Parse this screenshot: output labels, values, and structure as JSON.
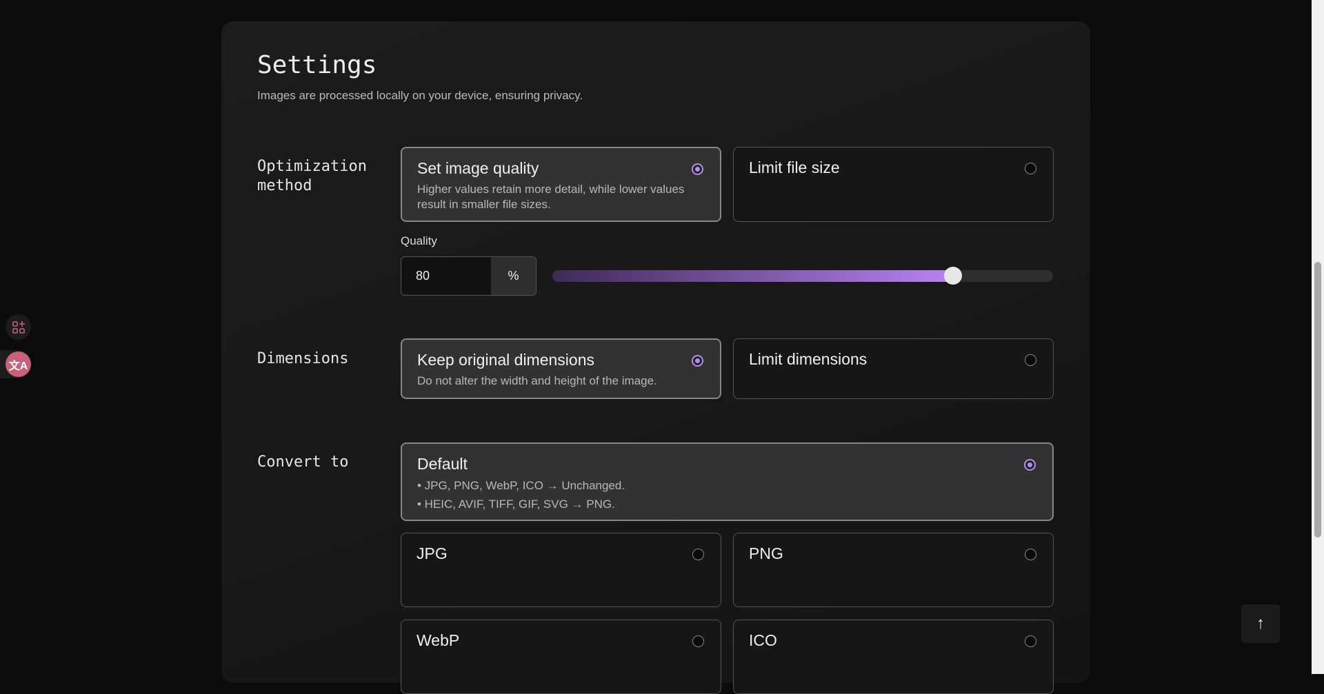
{
  "header": {
    "title": "Settings",
    "subtitle": "Images are processed locally on your device, ensuring privacy."
  },
  "optimization": {
    "label": "Optimization method",
    "options": [
      {
        "title": "Set image quality",
        "desc": "Higher values retain more detail, while lower values result in smaller file sizes.",
        "selected": true
      },
      {
        "title": "Limit file size",
        "selected": false
      }
    ],
    "quality_label": "Quality",
    "quality_value": "80",
    "unit": "%",
    "slider_percent": 80
  },
  "dimensions": {
    "label": "Dimensions",
    "options": [
      {
        "title": "Keep original dimensions",
        "desc": "Do not alter the width and height of the image.",
        "selected": true
      },
      {
        "title": "Limit dimensions",
        "selected": false
      }
    ]
  },
  "convert": {
    "label": "Convert to",
    "default": {
      "title": "Default",
      "line1": "• JPG, PNG, WebP, ICO → Unchanged.",
      "line2": "• HEIC, AVIF, TIFF, GIF, SVG → PNG.",
      "selected": true
    },
    "formats": [
      "JPG",
      "PNG",
      "WebP",
      "ICO"
    ]
  },
  "icons": {
    "side1": "apps-sparkle-icon",
    "side2": "translate-icon",
    "top": "arrow-up-icon"
  },
  "colors": {
    "accent": "#b98cf0",
    "side_badge": "#c8607a"
  }
}
